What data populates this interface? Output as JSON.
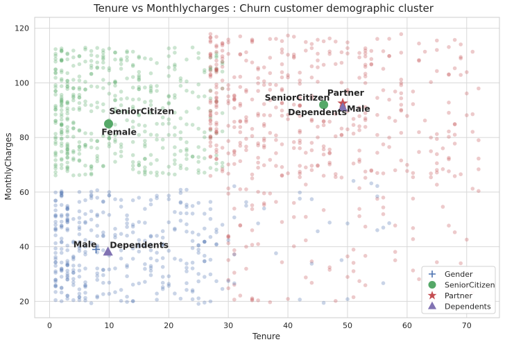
{
  "chart_data": {
    "type": "scatter",
    "title": "Tenure vs Monthlycharges : Churn customer demographic cluster",
    "xlabel": "Tenure",
    "ylabel": "MonthlyCharges",
    "xlim": [
      -2.5,
      75.5
    ],
    "ylim": [
      14,
      124
    ],
    "x_ticks": [
      0,
      10,
      20,
      30,
      40,
      50,
      60,
      70
    ],
    "y_ticks": [
      20,
      40,
      60,
      80,
      100,
      120
    ],
    "grid": true,
    "legend_position": "bottom-right",
    "clusters": [
      {
        "color": "#4c72b0",
        "x_range": [
          1,
          28
        ],
        "y_range": [
          19,
          61
        ],
        "count": 330
      },
      {
        "color": "#55a868",
        "x_range": [
          1,
          29
        ],
        "y_range": [
          66,
          113
        ],
        "count": 450
      },
      {
        "color": "#c44e52",
        "x_range": [
          27,
          72
        ],
        "y_range": [
          65,
          118
        ],
        "count": 420
      },
      {
        "color": "#c44e52",
        "x_range": [
          30,
          72
        ],
        "y_range": [
          19,
          66
        ],
        "count": 95
      },
      {
        "color": "#4c72b0",
        "x_range": [
          28,
          60
        ],
        "y_range": [
          19,
          65
        ],
        "count": 35
      }
    ],
    "centroids": [
      {
        "series": "Gender",
        "label": "Male",
        "x": 7.8,
        "y": 39,
        "color": "#4c72b0",
        "marker": "plus",
        "label_dx": -3.8,
        "label_dy": 0.8
      },
      {
        "series": "Dependents",
        "label": "Dependents",
        "x": 9.8,
        "y": 38,
        "color": "#8172b2",
        "marker": "triangle",
        "label_dx": 0.3,
        "label_dy": 1.5
      },
      {
        "series": "SeniorCitizen",
        "label": "SeniorCitizen",
        "x": 9.9,
        "y": 85,
        "color": "#55a868",
        "marker": "circle",
        "label_dx": 0.1,
        "label_dy": 3.5
      },
      {
        "series": "Gender",
        "label": "Female",
        "x": 9.9,
        "y": 85,
        "color": "#4c72b0",
        "marker": "none",
        "label_dx": -1.2,
        "label_dy": -4.0
      },
      {
        "series": "SeniorCitizen",
        "label": "SeniorCitizen",
        "x": 46,
        "y": 92,
        "color": "#55a868",
        "marker": "circle",
        "label_dx": -9.9,
        "label_dy": 1.5
      },
      {
        "series": "Partner",
        "label": "Partner",
        "x": 49.2,
        "y": 92.5,
        "color": "#c44e52",
        "marker": "star",
        "label_dx": -2.6,
        "label_dy": 2.8
      },
      {
        "series": "Dependents",
        "label": "Dependents",
        "x": 49.2,
        "y": 90.8,
        "color": "#8172b2",
        "marker": "triangle",
        "label_dx": -9.2,
        "label_dy": -2.6
      },
      {
        "series": "Gender",
        "label": "Male",
        "x": 49.2,
        "y": 90.8,
        "color": "#4c72b0",
        "marker": "none",
        "label_dx": 0.7,
        "label_dy": -1.3
      }
    ],
    "legend": [
      {
        "label": "Gender",
        "marker": "plus",
        "color": "#4c72b0"
      },
      {
        "label": "SeniorCitizen",
        "marker": "circle",
        "color": "#55a868"
      },
      {
        "label": "Partner",
        "marker": "star",
        "color": "#c44e52"
      },
      {
        "label": "Dependents",
        "marker": "triangle",
        "color": "#8172b2"
      }
    ]
  }
}
